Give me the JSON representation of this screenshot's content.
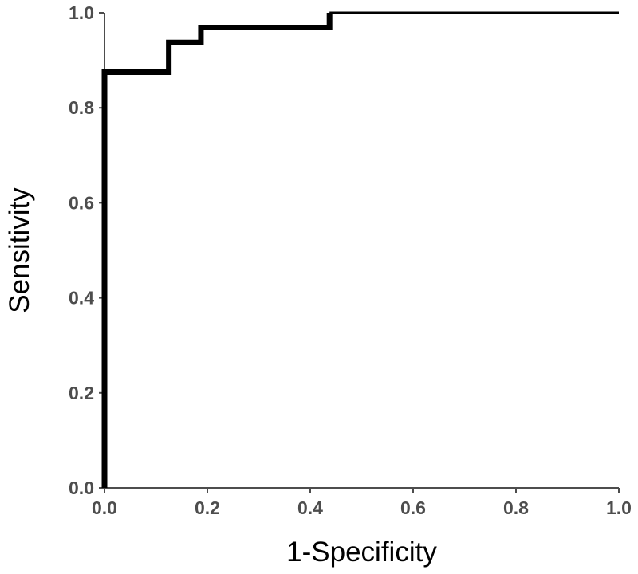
{
  "chart_data": {
    "type": "line",
    "title": "",
    "xlabel": "1-Specificity",
    "ylabel": "Sensitivity",
    "xlim": [
      0,
      1
    ],
    "ylim": [
      0,
      1
    ],
    "xticks": [
      "0.0",
      "0.2",
      "0.4",
      "0.6",
      "0.8",
      "1.0"
    ],
    "yticks": [
      "0.0",
      "0.2",
      "0.4",
      "0.6",
      "0.8",
      "1.0"
    ],
    "grid": false,
    "legend": "none",
    "colors": {
      "line": "#000000",
      "axis": "#4d4d4d",
      "background": "#ffffff"
    },
    "series": [
      {
        "x": [
          0,
          0,
          0.125,
          0.125,
          0.1875,
          0.1875,
          0.4375,
          0.4375,
          1.0
        ],
        "y": [
          0,
          0.875,
          0.875,
          0.9375,
          0.9375,
          0.969,
          0.969,
          1.0,
          1.0
        ]
      }
    ]
  }
}
